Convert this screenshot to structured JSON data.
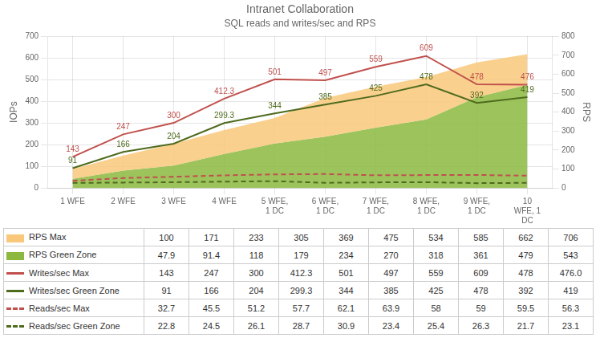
{
  "chart_data": {
    "type": "line",
    "title": "Intranet Collaboration",
    "subtitle": "SQL reads and writes/sec and RPS",
    "categories": [
      "1 WFE",
      "2 WFE",
      "3 WFE",
      "4 WFE",
      "5 WFE,\n1 DC",
      "6 WFE,\n1 DC",
      "7 WFE,\n1 DC",
      "8 WFE,\n1 DC",
      "9 WFE,\n1 DC",
      "10\nWFE, 1\nDC"
    ],
    "y_label": "IOPs",
    "y2_label": "RPS",
    "ylim": [
      0,
      700
    ],
    "yticks": [
      0,
      100,
      200,
      300,
      400,
      500,
      600,
      700
    ],
    "y2lim": [
      0,
      800
    ],
    "y2ticks": [
      0,
      100,
      200,
      300,
      400,
      500,
      600,
      700,
      800
    ],
    "grid": true,
    "series": [
      {
        "name": "RPS Max",
        "type": "area",
        "axis": "y2",
        "color": "#F9C87A",
        "values": [
          100,
          171,
          233,
          305,
          369,
          475,
          534,
          585,
          662,
          706
        ],
        "table_labels": [
          "100",
          "171",
          "233",
          "305",
          "369",
          "475",
          "534",
          "585",
          "662",
          "706"
        ]
      },
      {
        "name": "RPS Green Zone",
        "type": "area",
        "axis": "y2",
        "color": "#8CB840",
        "values": [
          47.9,
          91.4,
          118,
          179,
          234,
          270,
          318,
          361,
          479,
          543
        ],
        "table_labels": [
          "47.9",
          "91.4",
          "118",
          "179",
          "234",
          "270",
          "318",
          "361",
          "479",
          "543"
        ]
      },
      {
        "name": "Writes/sec Max",
        "type": "line",
        "axis": "y",
        "color": "#C0504D",
        "line_style": "solid",
        "data_labels": true,
        "values": [
          143,
          247,
          300,
          412.3,
          501,
          497,
          559,
          609,
          478,
          476.0
        ],
        "table_labels": [
          "143",
          "247",
          "300",
          "412.3",
          "501",
          "497",
          "559",
          "609",
          "478",
          "476.0"
        ]
      },
      {
        "name": "Writes/sec Green Zone",
        "type": "line",
        "axis": "y",
        "color": "#4E6B1E",
        "line_style": "solid",
        "data_labels": true,
        "values": [
          91,
          166,
          204,
          299.3,
          344,
          385,
          425,
          478,
          392,
          419
        ],
        "table_labels": [
          "91",
          "166",
          "204",
          "299.3",
          "344",
          "385",
          "425",
          "478",
          "392",
          "419"
        ]
      },
      {
        "name": "Reads/sec Max",
        "type": "line",
        "axis": "y",
        "color": "#C0504D",
        "line_style": "dashed",
        "values": [
          32.7,
          45.5,
          51.2,
          57.7,
          62.1,
          63.9,
          58,
          59,
          59.5,
          56.3
        ],
        "table_labels": [
          "32.7",
          "45.5",
          "51.2",
          "57.7",
          "62.1",
          "63.9",
          "58",
          "59",
          "59.5",
          "56.3"
        ]
      },
      {
        "name": "Reads/sec Green Zone",
        "type": "line",
        "axis": "y",
        "color": "#4E6B1E",
        "line_style": "dashed",
        "values": [
          22.8,
          24.5,
          26.1,
          28.7,
          30.9,
          23.4,
          25.4,
          26.3,
          21.7,
          23.1
        ],
        "table_labels": [
          "22.8",
          "24.5",
          "26.1",
          "28.7",
          "30.9",
          "23.4",
          "25.4",
          "26.3",
          "21.7",
          "23.1"
        ]
      }
    ]
  }
}
